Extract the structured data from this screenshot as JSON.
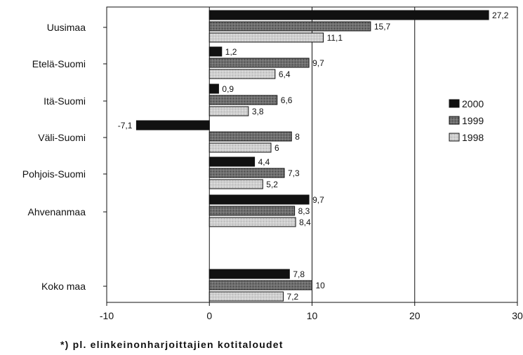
{
  "chart_data": {
    "type": "bar",
    "orientation": "horizontal",
    "categories": [
      "Uusimaa",
      "Etelä-Suomi",
      "Itä-Suomi",
      "Väli-Suomi",
      "Pohjois-Suomi",
      "Ahvenanmaa",
      "Koko maa"
    ],
    "series": [
      {
        "name": "2000",
        "color": "#111111",
        "values": [
          27.2,
          1.2,
          0.9,
          -7.1,
          4.4,
          9.7,
          7.8
        ],
        "labels": [
          "27,2",
          "1,2",
          "0,9",
          "-7,1",
          "4,4",
          "9,7",
          "7,8"
        ]
      },
      {
        "name": "1999",
        "color": "#6e6e6e",
        "values": [
          15.7,
          9.7,
          6.6,
          8,
          7.3,
          8.3,
          10
        ],
        "labels": [
          "15,7",
          "9,7",
          "6,6",
          "8",
          "7,3",
          "8,3",
          "10"
        ]
      },
      {
        "name": "1998",
        "color": "#cfcfcf",
        "values": [
          11.1,
          6.4,
          3.8,
          6,
          5.2,
          8.4,
          7.2
        ],
        "labels": [
          "11,1",
          "6,4",
          "3,8",
          "6",
          "5,2",
          "8,4",
          "7,2"
        ]
      }
    ],
    "xlim": [
      -10,
      30
    ],
    "xticks": [
      -10,
      0,
      10,
      20,
      30
    ],
    "xtick_labels": [
      "-10",
      "0",
      "10",
      "20",
      "30"
    ],
    "gridlines": [
      0,
      10,
      20
    ],
    "legend_position": "right",
    "title": "",
    "xlabel": "",
    "ylabel": ""
  },
  "footnote": "*) pl. elinkeinonharjoittajien kotitaloudet"
}
